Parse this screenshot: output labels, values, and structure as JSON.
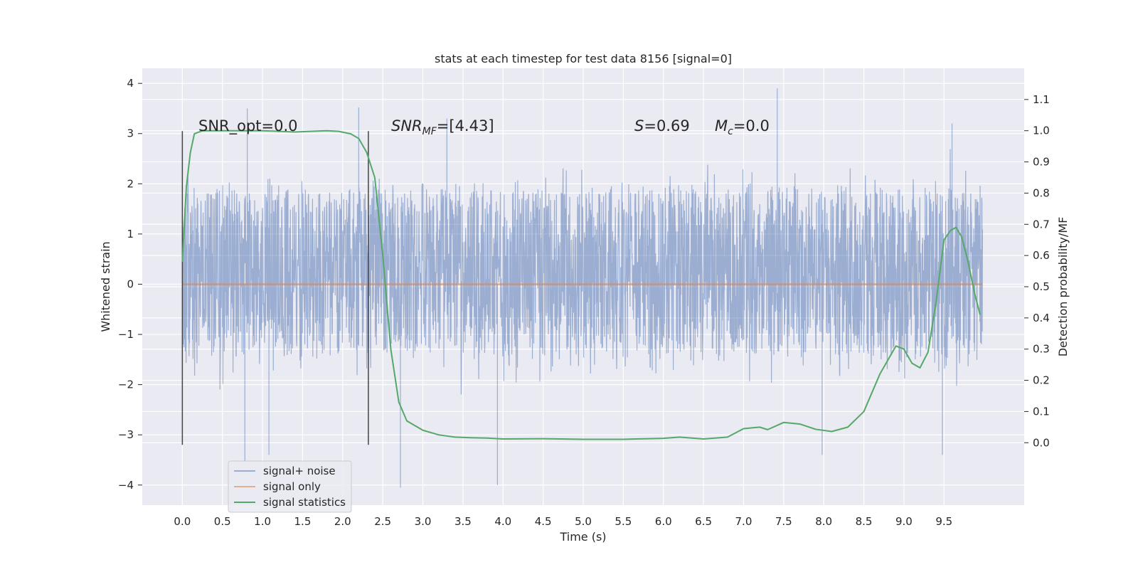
{
  "chart_data": {
    "type": "line",
    "title": "stats at each timestep for test data 8156 [signal=0]",
    "xlabel": "Time (s)",
    "ylabel": "Whitened strain",
    "y2label": "Detection probability/MF",
    "xlim": [
      -0.5,
      10.5
    ],
    "ylim": [
      -4.4,
      4.3
    ],
    "y2lim": [
      -0.2,
      1.2
    ],
    "x_ticks": [
      "0.0",
      "0.5",
      "1.0",
      "1.5",
      "2.0",
      "2.5",
      "3.0",
      "3.5",
      "4.0",
      "4.5",
      "5.0",
      "5.5",
      "6.0",
      "6.5",
      "7.0",
      "7.5",
      "8.0",
      "8.5",
      "9.0",
      "9.5"
    ],
    "y_ticks": [
      "4",
      "3",
      "2",
      "1",
      "0",
      "−1",
      "−2",
      "−3",
      "−4"
    ],
    "y2_ticks": [
      "1.1",
      "1.0",
      "0.9",
      "0.8",
      "0.7",
      "0.6",
      "0.5",
      "0.4",
      "0.3",
      "0.2",
      "0.1",
      "0.0"
    ],
    "grid": true,
    "legend_placement": "lower-left",
    "annotations": {
      "snr_opt": "SNR_opt=0.0",
      "snr_mf_main": "SNR",
      "snr_mf_sub": "MF",
      "snr_mf_value": "=[4.43]",
      "s_main": "S",
      "s_value": "=0.69",
      "mc_main": "M",
      "mc_sub": "c",
      "mc_value": "=0.0"
    },
    "vlines": [
      {
        "x": 0.0,
        "ymin": -3.2,
        "ymax": 3.05
      },
      {
        "x": 2.32,
        "ymin": -3.2,
        "ymax": 3.05
      }
    ],
    "series": [
      {
        "name": "signal+ noise",
        "axis": "left",
        "color": "#4c72b0",
        "envelope": {
          "x_range": [
            0.0,
            9.98
          ],
          "core_band": [
            -1.3,
            1.8
          ],
          "typical_peaks": [
            -2.6,
            2.6
          ],
          "spikes": [
            {
              "x": 0.78,
              "y": -3.55
            },
            {
              "x": 0.81,
              "y": 3.5
            },
            {
              "x": 1.08,
              "y": -3.4
            },
            {
              "x": 2.2,
              "y": 3.52
            },
            {
              "x": 2.72,
              "y": -4.05
            },
            {
              "x": 3.3,
              "y": 3.3
            },
            {
              "x": 3.93,
              "y": -4.0
            },
            {
              "x": 7.42,
              "y": 3.9
            },
            {
              "x": 7.98,
              "y": -3.4
            },
            {
              "x": 9.48,
              "y": -3.4
            },
            {
              "x": 9.6,
              "y": 3.2
            }
          ]
        }
      },
      {
        "name": "signal only",
        "axis": "left",
        "color": "#dd8452",
        "x": [
          0.0,
          9.98
        ],
        "y": [
          0.0,
          0.0
        ]
      },
      {
        "name": "signal statistics",
        "axis": "right",
        "color": "#55a868",
        "x": [
          0.0,
          0.05,
          0.1,
          0.15,
          0.25,
          0.4,
          0.6,
          0.8,
          1.0,
          1.2,
          1.4,
          1.6,
          1.8,
          1.95,
          2.1,
          2.2,
          2.3,
          2.4,
          2.5,
          2.6,
          2.7,
          2.8,
          3.0,
          3.2,
          3.4,
          3.6,
          3.8,
          4.0,
          4.5,
          5.0,
          5.5,
          6.0,
          6.2,
          6.5,
          6.8,
          7.0,
          7.2,
          7.3,
          7.5,
          7.7,
          7.9,
          8.1,
          8.3,
          8.5,
          8.7,
          8.9,
          9.0,
          9.1,
          9.2,
          9.3,
          9.4,
          9.5,
          9.58,
          9.65,
          9.72,
          9.8,
          9.88,
          9.95
        ],
        "y": [
          0.58,
          0.82,
          0.93,
          0.99,
          1.0,
          1.0,
          1.0,
          1.0,
          1.0,
          0.998,
          0.996,
          0.998,
          1.0,
          0.998,
          0.99,
          0.975,
          0.93,
          0.85,
          0.6,
          0.3,
          0.13,
          0.07,
          0.04,
          0.025,
          0.018,
          0.016,
          0.015,
          0.012,
          0.013,
          0.011,
          0.011,
          0.014,
          0.018,
          0.012,
          0.018,
          0.045,
          0.05,
          0.042,
          0.065,
          0.06,
          0.043,
          0.036,
          0.05,
          0.1,
          0.22,
          0.31,
          0.3,
          0.255,
          0.24,
          0.29,
          0.45,
          0.65,
          0.68,
          0.69,
          0.66,
          0.58,
          0.48,
          0.41
        ]
      }
    ]
  }
}
